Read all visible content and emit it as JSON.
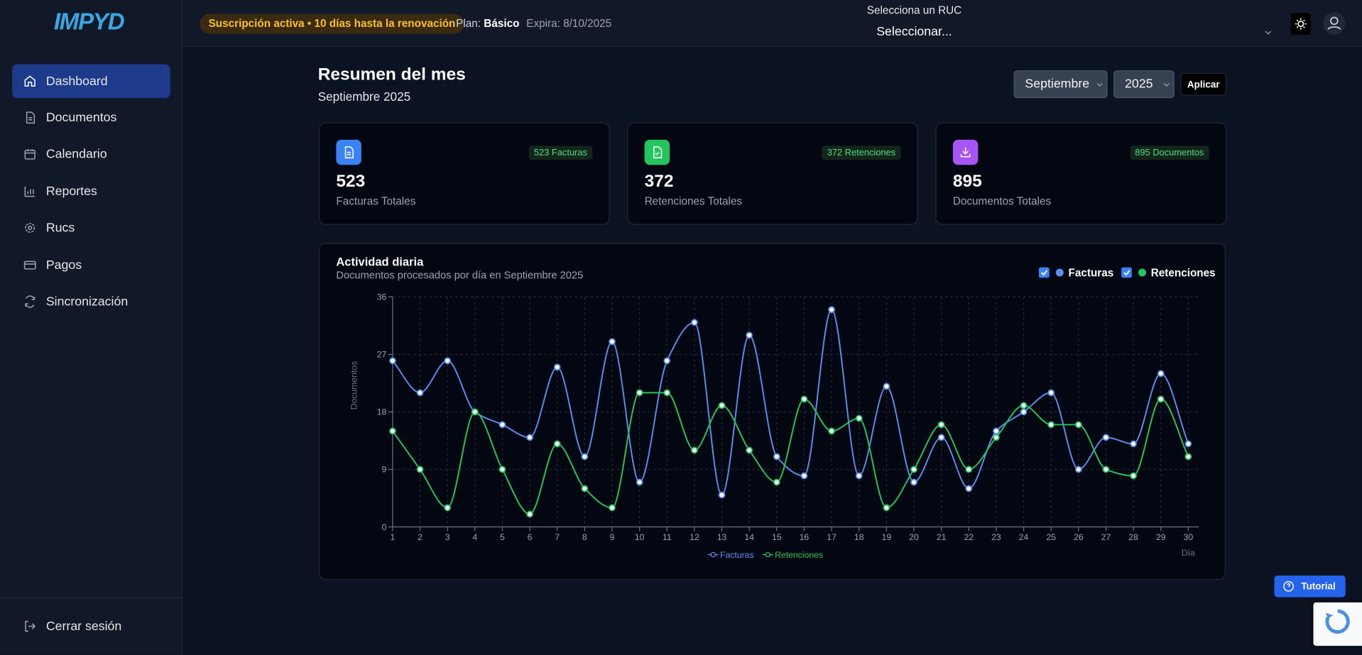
{
  "logo": "IMPYD",
  "header": {
    "subscription": "Suscripción activa • 10 días hasta la renovación",
    "plan_label": "Plan:",
    "plan": "Básico",
    "expires": "Expira: 8/10/2025",
    "ruc_label": "Selecciona un RUC",
    "ruc_select": "Seleccionar..."
  },
  "sidebar": {
    "items": [
      "Dashboard",
      "Documentos",
      "Calendario",
      "Reportes",
      "Rucs",
      "Pagos",
      "Sincronización"
    ],
    "logout": "Cerrar sesión"
  },
  "summary": {
    "title": "Resumen del mes",
    "subtitle": "Septiembre 2025",
    "month": "Septiembre",
    "year": "2025",
    "apply": "Aplicar"
  },
  "cards": [
    {
      "badge": "523 Facturas",
      "value": 523,
      "label": "Facturas Totales"
    },
    {
      "badge": "372 Retenciones",
      "value": 372,
      "label": "Retenciones Totales"
    },
    {
      "badge": "895 Documentos",
      "value": 895,
      "label": "Documentos Totales"
    }
  ],
  "tutorial": "Tutorial",
  "chart_data": {
    "type": "line",
    "title": "Actividad diaria",
    "subtitle": "Documentos procesados por día en Septiembre 2025",
    "y_label": "Documentos",
    "x_label": "Día",
    "categories": [
      "1",
      "2",
      "3",
      "4",
      "5",
      "6",
      "7",
      "8",
      "9",
      "10",
      "11",
      "12",
      "13",
      "14",
      "15",
      "16",
      "17",
      "18",
      "19",
      "20",
      "21",
      "22",
      "23",
      "24",
      "25",
      "26",
      "27",
      "28",
      "29",
      "30"
    ],
    "series": [
      {
        "name": "Facturas",
        "color": "#5b8def",
        "values": [
          26,
          21,
          26,
          18,
          16,
          14,
          25,
          11,
          29,
          7,
          26,
          32,
          5,
          30,
          11,
          8,
          34,
          8,
          22,
          7,
          14,
          6,
          15,
          18,
          21,
          9,
          14,
          13,
          24,
          13
        ]
      },
      {
        "name": "Retenciones",
        "color": "#22c55e",
        "values": [
          15,
          9,
          3,
          18,
          9,
          2,
          13,
          6,
          3,
          21,
          21,
          12,
          19,
          12,
          7,
          20,
          15,
          17,
          3,
          9,
          16,
          9,
          14,
          19,
          16,
          16,
          9,
          8,
          20,
          11
        ]
      }
    ],
    "ylim": [
      0,
      36
    ],
    "yticks": [
      0,
      9,
      18,
      27,
      36
    ],
    "grid": true
  }
}
